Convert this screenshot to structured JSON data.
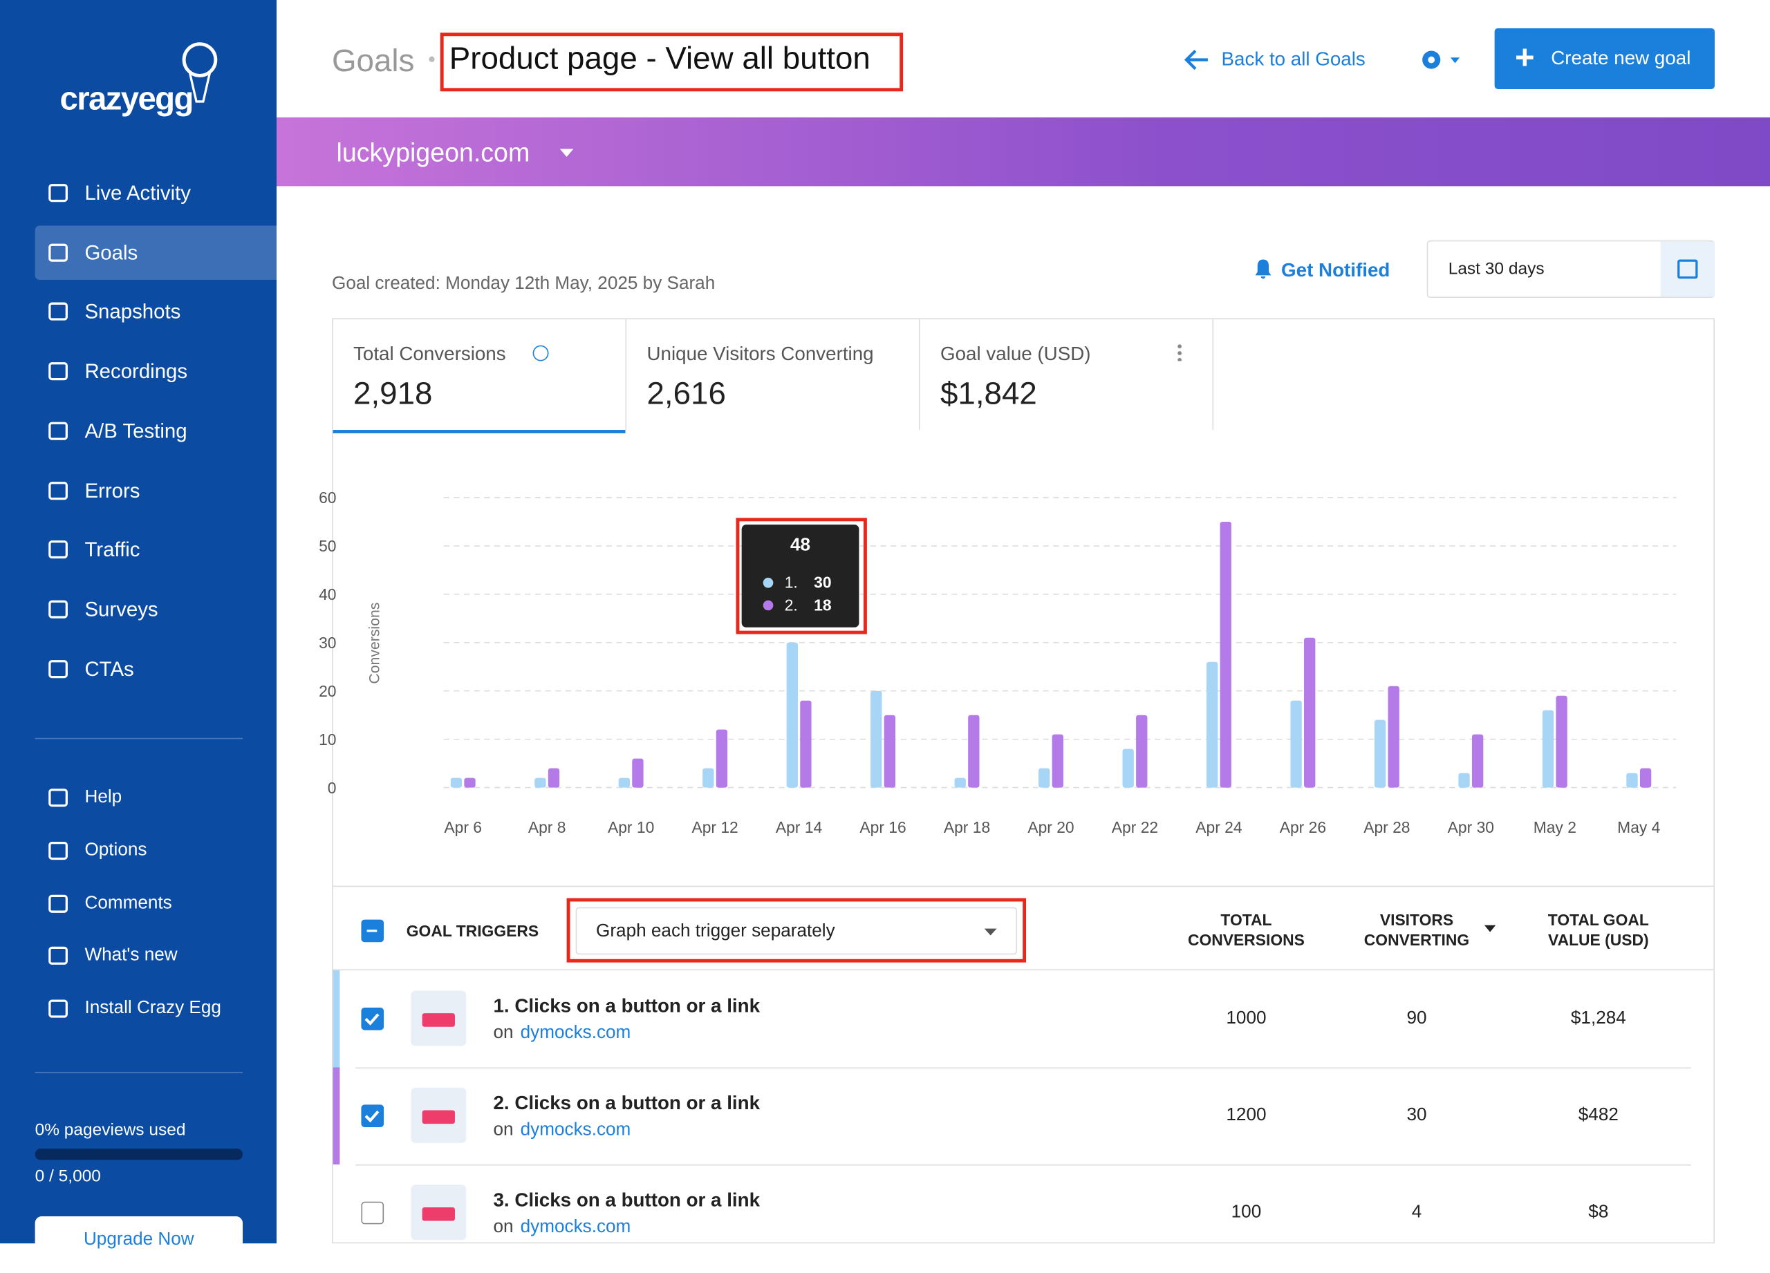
{
  "sidebar": {
    "logo": "crazyegg",
    "nav": [
      "Live Activity",
      "Goals",
      "Snapshots",
      "Recordings",
      "A/B Testing",
      "Errors",
      "Traffic",
      "Surveys",
      "CTAs"
    ],
    "active": 1,
    "secondary": [
      "Help",
      "Options",
      "Comments",
      "What's new",
      "Install Crazy Egg"
    ],
    "usage_label": "0% pageviews used",
    "usage_count": "0 / 5,000",
    "upgrade": "Upgrade Now"
  },
  "header": {
    "breadcrumb": "Goals",
    "title": "Product page - View all button",
    "back": "Back to all Goals",
    "create": "Create new goal"
  },
  "site": "luckypigeon.com",
  "goal_created": "Goal created: Monday 12th May, 2025 by Sarah",
  "notify": "Get Notified",
  "date_range": "Last 30 days",
  "metrics": [
    {
      "label": "Total Conversions",
      "value": "2,918"
    },
    {
      "label": "Unique Visitors Converting",
      "value": "2,616"
    },
    {
      "label": "Goal value (USD)",
      "value": "$1,842"
    }
  ],
  "chart": {
    "type": "bar",
    "y_label": "Conversions",
    "categories": [
      "Apr 6",
      "Apr 8",
      "Apr 10",
      "Apr 12",
      "Apr 14",
      "Apr 16",
      "Apr 18",
      "Apr 20",
      "Apr 22",
      "Apr 24",
      "Apr 26",
      "Apr 28",
      "Apr 30",
      "May 2",
      "May 4"
    ],
    "series": [
      {
        "color": "#a6d5f5",
        "values": [
          2,
          2,
          2,
          4,
          30,
          20,
          2,
          4,
          8,
          26,
          18,
          14,
          3,
          16,
          3
        ]
      },
      {
        "color": "#b47ae8",
        "values": [
          2,
          4,
          6,
          12,
          18,
          15,
          15,
          11,
          15,
          55,
          31,
          21,
          11,
          19,
          4
        ]
      }
    ],
    "ylim": [
      0,
      60
    ],
    "yticks": [
      0,
      10,
      20,
      30,
      40,
      50,
      60
    ],
    "grid": true
  },
  "tooltip": {
    "total": 48,
    "items": [
      {
        "label": "1.",
        "value": 30
      },
      {
        "label": "2.",
        "value": 18
      }
    ]
  },
  "table": {
    "header": "GOAL TRIGGERS",
    "mode": "Graph each trigger separately",
    "columns": [
      "TOTAL CONVERSIONS",
      "VISITORS CONVERTING",
      "TOTAL GOAL VALUE (USD)"
    ],
    "rows": [
      {
        "title": "1. Clicks on a button or a link",
        "on": "on",
        "domain": "dymocks.com",
        "conversions": 1000,
        "visitors": 90,
        "value": "$1,284",
        "checked": true
      },
      {
        "title": "2. Clicks on a button or a link",
        "on": "on",
        "domain": "dymocks.com",
        "conversions": 1200,
        "visitors": 30,
        "value": "$482",
        "checked": true
      },
      {
        "title": "3. Clicks on a button or a link",
        "on": "on",
        "domain": "dymocks.com",
        "conversions": 100,
        "visitors": 4,
        "value": "$8",
        "checked": false
      }
    ]
  }
}
